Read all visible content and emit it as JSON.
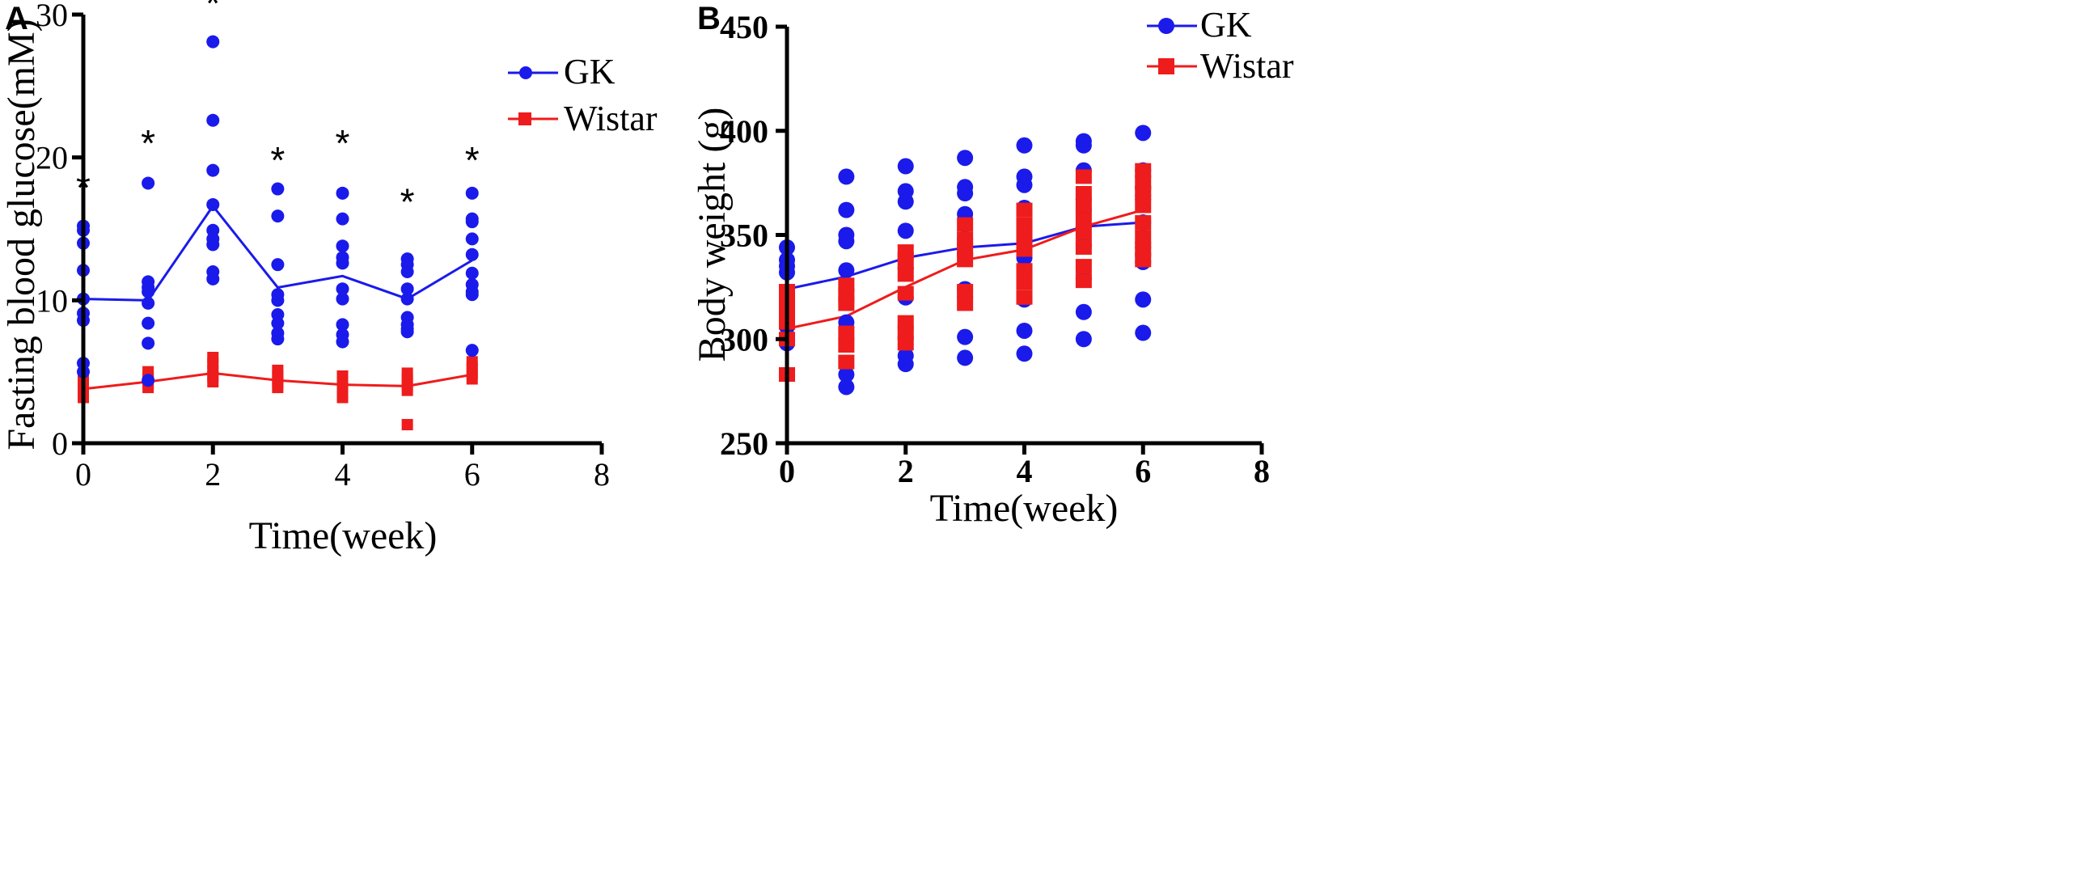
{
  "colors": {
    "gk": "#1a1aeb",
    "wistar": "#ee1c1c"
  },
  "chart_data": [
    {
      "type": "scatter",
      "panel_label": "A",
      "xlabel": "Time(week)",
      "ylabel": "Fasting blood glucose(mM)",
      "xlim": [
        0,
        8
      ],
      "ylim": [
        0,
        30
      ],
      "xticks": [
        0,
        2,
        4,
        6,
        8
      ],
      "yticks": [
        0,
        10,
        20,
        30
      ],
      "legend": {
        "gk": "GK",
        "wistar": "Wistar"
      },
      "significance": [
        {
          "x": 0,
          "y": 17.9,
          "label": "*"
        },
        {
          "x": 1,
          "y": 21.0,
          "label": "*"
        },
        {
          "x": 2,
          "y": 30.8,
          "label": "*"
        },
        {
          "x": 3,
          "y": 19.8,
          "label": "*"
        },
        {
          "x": 4,
          "y": 21.0,
          "label": "*"
        },
        {
          "x": 5,
          "y": 16.9,
          "label": "*"
        },
        {
          "x": 6,
          "y": 19.8,
          "label": "*"
        }
      ],
      "series": [
        {
          "name": "GK",
          "color_key": "gk",
          "marker": "circle",
          "mean": [
            [
              0,
              10.1
            ],
            [
              1,
              10.0
            ],
            [
              2,
              16.6
            ],
            [
              3,
              10.9
            ],
            [
              4,
              11.7
            ],
            [
              5,
              10.1
            ],
            [
              6,
              12.8
            ]
          ],
          "points": [
            [
              0,
              15.2
            ],
            [
              0,
              14.9
            ],
            [
              0,
              14.0
            ],
            [
              0,
              12.1
            ],
            [
              0,
              10.1
            ],
            [
              0,
              9.1
            ],
            [
              0,
              8.6
            ],
            [
              0,
              5.6
            ],
            [
              0,
              5.0
            ],
            [
              1,
              18.2
            ],
            [
              1,
              11.3
            ],
            [
              1,
              10.9
            ],
            [
              1,
              10.6
            ],
            [
              1,
              9.8
            ],
            [
              1,
              8.4
            ],
            [
              1,
              7.0
            ],
            [
              1,
              4.4
            ],
            [
              2,
              28.1
            ],
            [
              2,
              22.6
            ],
            [
              2,
              19.1
            ],
            [
              2,
              16.7
            ],
            [
              2,
              14.9
            ],
            [
              2,
              14.3
            ],
            [
              2,
              13.9
            ],
            [
              2,
              12.0
            ],
            [
              2,
              11.5
            ],
            [
              3,
              17.8
            ],
            [
              3,
              15.9
            ],
            [
              3,
              12.5
            ],
            [
              3,
              10.4
            ],
            [
              3,
              10.0
            ],
            [
              3,
              9.0
            ],
            [
              3,
              8.4
            ],
            [
              3,
              7.7
            ],
            [
              3,
              7.3
            ],
            [
              4,
              17.5
            ],
            [
              4,
              15.7
            ],
            [
              4,
              13.8
            ],
            [
              4,
              13.0
            ],
            [
              4,
              12.6
            ],
            [
              4,
              10.8
            ],
            [
              4,
              10.1
            ],
            [
              4,
              8.3
            ],
            [
              4,
              7.6
            ],
            [
              4,
              7.1
            ],
            [
              5,
              12.9
            ],
            [
              5,
              12.5
            ],
            [
              5,
              12.0
            ],
            [
              5,
              10.8
            ],
            [
              5,
              10.1
            ],
            [
              5,
              8.8
            ],
            [
              5,
              8.3
            ],
            [
              5,
              8.0
            ],
            [
              5,
              7.8
            ],
            [
              6,
              17.5
            ],
            [
              6,
              15.7
            ],
            [
              6,
              15.5
            ],
            [
              6,
              14.3
            ],
            [
              6,
              13.2
            ],
            [
              6,
              11.9
            ],
            [
              6,
              11.1
            ],
            [
              6,
              10.6
            ],
            [
              6,
              10.4
            ],
            [
              6,
              6.5
            ]
          ]
        },
        {
          "name": "Wistar",
          "color_key": "wistar",
          "marker": "square",
          "mean": [
            [
              0,
              3.8
            ],
            [
              1,
              4.3
            ],
            [
              2,
              4.9
            ],
            [
              3,
              4.4
            ],
            [
              4,
              4.1
            ],
            [
              5,
              4.0
            ],
            [
              6,
              4.8
            ]
          ],
          "points": [
            [
              0,
              4.5
            ],
            [
              0,
              4.1
            ],
            [
              0,
              3.8
            ],
            [
              0,
              3.5
            ],
            [
              0,
              3.2
            ],
            [
              1,
              5.0
            ],
            [
              1,
              4.6
            ],
            [
              1,
              4.2
            ],
            [
              1,
              3.9
            ],
            [
              2,
              6.0
            ],
            [
              2,
              5.6
            ],
            [
              2,
              5.1
            ],
            [
              2,
              4.7
            ],
            [
              2,
              4.3
            ],
            [
              3,
              5.1
            ],
            [
              3,
              4.7
            ],
            [
              3,
              4.3
            ],
            [
              3,
              3.9
            ],
            [
              4,
              4.7
            ],
            [
              4,
              4.3
            ],
            [
              4,
              3.9
            ],
            [
              4,
              3.5
            ],
            [
              4,
              3.2
            ],
            [
              5,
              4.9
            ],
            [
              5,
              4.5
            ],
            [
              5,
              4.1
            ],
            [
              5,
              3.7
            ],
            [
              5,
              1.3
            ],
            [
              6,
              5.7
            ],
            [
              6,
              5.3
            ],
            [
              6,
              4.9
            ],
            [
              6,
              4.5
            ]
          ]
        }
      ]
    },
    {
      "type": "scatter",
      "panel_label": "B",
      "xlabel": "Time(week)",
      "ylabel": "Body weight (g)",
      "xlim": [
        0,
        8
      ],
      "ylim": [
        250,
        450
      ],
      "xticks": [
        0,
        2,
        4,
        6,
        8
      ],
      "yticks": [
        250,
        300,
        350,
        400,
        450
      ],
      "legend": {
        "gk": "GK",
        "wistar": "Wistar"
      },
      "series": [
        {
          "name": "GK",
          "color_key": "gk",
          "marker": "circle",
          "mean": [
            [
              0,
              324
            ],
            [
              1,
              330
            ],
            [
              2,
              339
            ],
            [
              3,
              344
            ],
            [
              4,
              346
            ],
            [
              5,
              354
            ],
            [
              6,
              356
            ]
          ],
          "points": [
            [
              0,
              344
            ],
            [
              0,
              338
            ],
            [
              0,
              335
            ],
            [
              0,
              332
            ],
            [
              0,
              306
            ],
            [
              0,
              301
            ],
            [
              0,
              298
            ],
            [
              1,
              378
            ],
            [
              1,
              362
            ],
            [
              1,
              350
            ],
            [
              1,
              347
            ],
            [
              1,
              333
            ],
            [
              1,
              308
            ],
            [
              1,
              283
            ],
            [
              1,
              277
            ],
            [
              2,
              383
            ],
            [
              2,
              371
            ],
            [
              2,
              366
            ],
            [
              2,
              352
            ],
            [
              2,
              341
            ],
            [
              2,
              334
            ],
            [
              2,
              320
            ],
            [
              2,
              292
            ],
            [
              2,
              288
            ],
            [
              3,
              387
            ],
            [
              3,
              373
            ],
            [
              3,
              370
            ],
            [
              3,
              360
            ],
            [
              3,
              348
            ],
            [
              3,
              341
            ],
            [
              3,
              324
            ],
            [
              3,
              301
            ],
            [
              3,
              291
            ],
            [
              4,
              393
            ],
            [
              4,
              378
            ],
            [
              4,
              374
            ],
            [
              4,
              363
            ],
            [
              4,
              347
            ],
            [
              4,
              339
            ],
            [
              4,
              319
            ],
            [
              4,
              304
            ],
            [
              4,
              293
            ],
            [
              5,
              395
            ],
            [
              5,
              393
            ],
            [
              5,
              381
            ],
            [
              5,
              367
            ],
            [
              5,
              362
            ],
            [
              5,
              345
            ],
            [
              5,
              329
            ],
            [
              5,
              313
            ],
            [
              5,
              300
            ],
            [
              6,
              399
            ],
            [
              6,
              381
            ],
            [
              6,
              373
            ],
            [
              6,
              369
            ],
            [
              6,
              356
            ],
            [
              6,
              344
            ],
            [
              6,
              337
            ],
            [
              6,
              319
            ],
            [
              6,
              303
            ]
          ]
        },
        {
          "name": "Wistar",
          "color_key": "wistar",
          "marker": "square",
          "mean": [
            [
              0,
              305
            ],
            [
              1,
              311
            ],
            [
              2,
              325
            ],
            [
              3,
              338
            ],
            [
              4,
              343
            ],
            [
              5,
              354
            ],
            [
              6,
              362
            ]
          ],
          "points": [
            [
              0,
              323
            ],
            [
              0,
              318
            ],
            [
              0,
              313
            ],
            [
              0,
              308
            ],
            [
              0,
              300
            ],
            [
              0,
              283
            ],
            [
              1,
              326
            ],
            [
              1,
              321
            ],
            [
              1,
              317
            ],
            [
              1,
              303
            ],
            [
              1,
              297
            ],
            [
              1,
              289
            ],
            [
              2,
              342
            ],
            [
              2,
              337
            ],
            [
              2,
              331
            ],
            [
              2,
              322
            ],
            [
              2,
              308
            ],
            [
              2,
              303
            ],
            [
              2,
              298
            ],
            [
              3,
              355
            ],
            [
              3,
              348
            ],
            [
              3,
              343
            ],
            [
              3,
              338
            ],
            [
              3,
              323
            ],
            [
              3,
              317
            ],
            [
              4,
              362
            ],
            [
              4,
              355
            ],
            [
              4,
              350
            ],
            [
              4,
              343
            ],
            [
              4,
              333
            ],
            [
              4,
              327
            ],
            [
              4,
              320
            ],
            [
              5,
              378
            ],
            [
              5,
              370
            ],
            [
              5,
              364
            ],
            [
              5,
              357
            ],
            [
              5,
              351
            ],
            [
              5,
              344
            ],
            [
              5,
              335
            ],
            [
              5,
              328
            ],
            [
              6,
              381
            ],
            [
              6,
              375
            ],
            [
              6,
              370
            ],
            [
              6,
              364
            ],
            [
              6,
              356
            ],
            [
              6,
              349
            ],
            [
              6,
              343
            ],
            [
              6,
              338
            ]
          ]
        }
      ]
    }
  ]
}
